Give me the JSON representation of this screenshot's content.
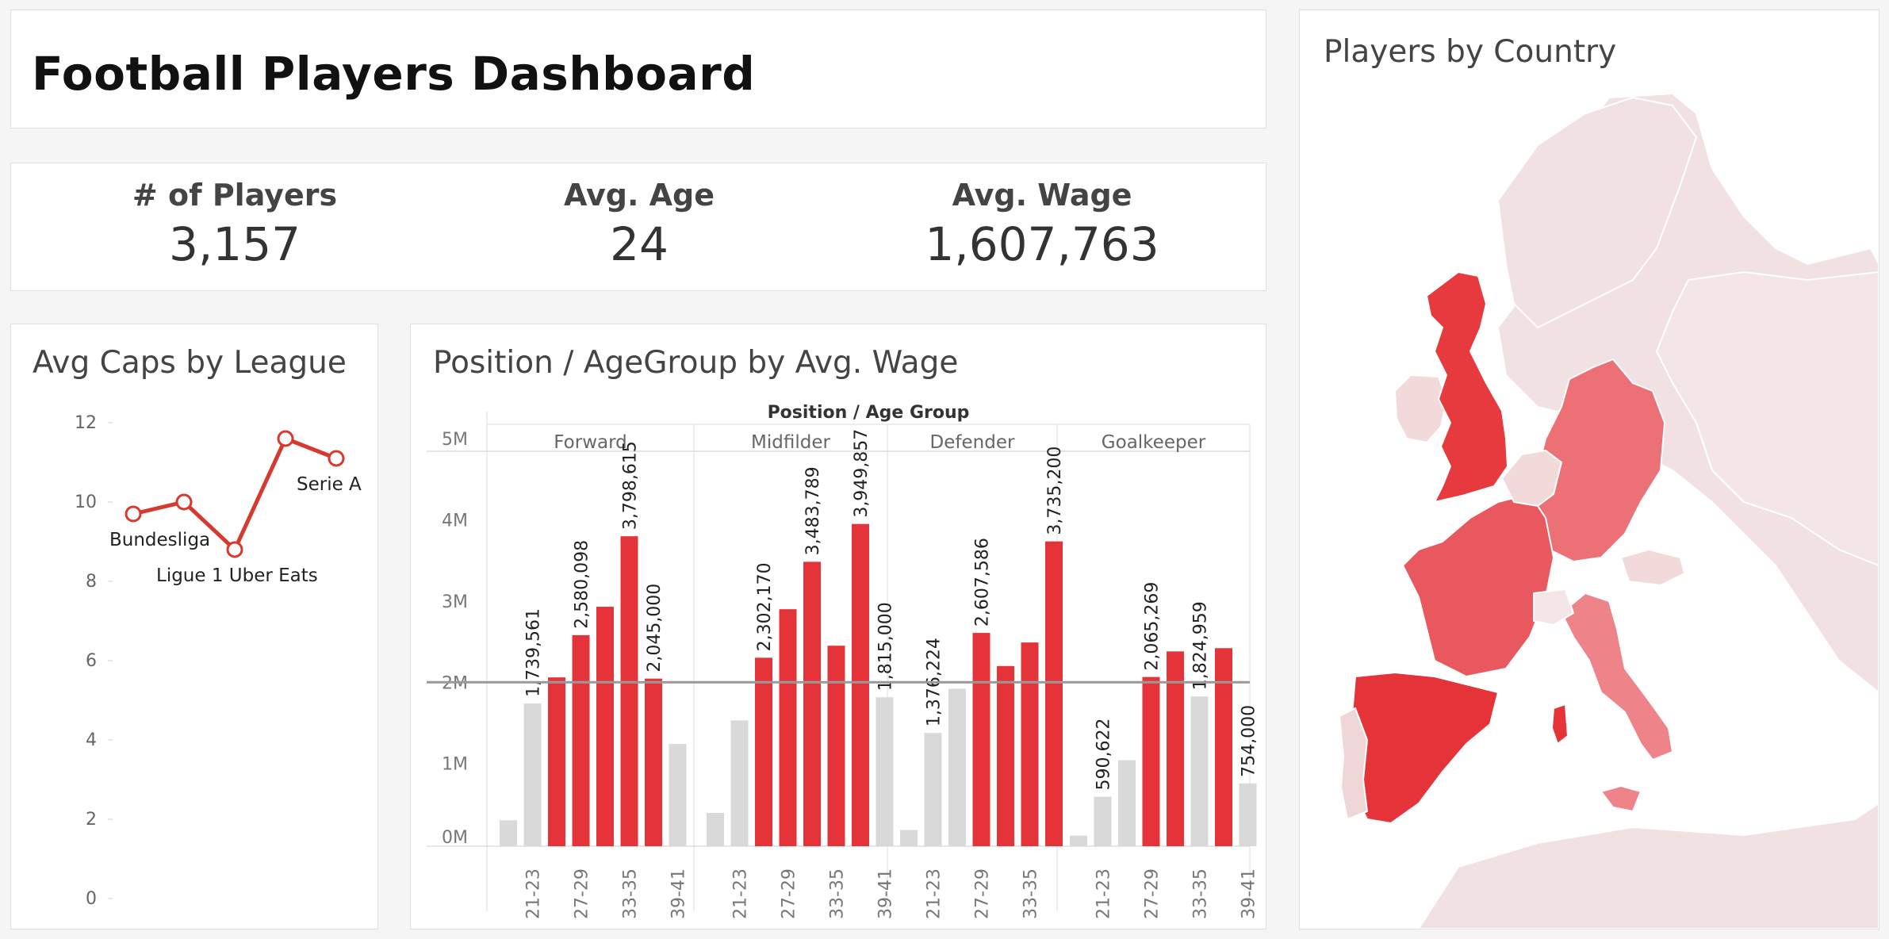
{
  "dashboard": {
    "title": "Football Players Dashboard"
  },
  "kpis": [
    {
      "label": "# of Players",
      "value": "3,157"
    },
    {
      "label": "Avg. Age",
      "value": "24"
    },
    {
      "label": "Avg. Wage",
      "value": "1,607,763"
    }
  ],
  "caps_chart": {
    "title": "Avg Caps by League",
    "chart_data": {
      "type": "line",
      "title": "Avg Caps by League",
      "y_ticks": [
        "0",
        "2",
        "4",
        "6",
        "8",
        "10",
        "12"
      ],
      "ylim": [
        0,
        12
      ],
      "points": [
        {
          "label": "",
          "value": 9.7
        },
        {
          "label": "Bundesliga",
          "value": 10.0
        },
        {
          "label": "Ligue 1 Uber Eats",
          "value": 8.8
        },
        {
          "label": "",
          "value": 11.6
        },
        {
          "label": "Serie A",
          "value": 11.1
        }
      ],
      "color": "#d63a2f"
    }
  },
  "wage_chart": {
    "title": "Position / AgeGroup by Avg. Wage",
    "chart_data": {
      "type": "bar",
      "column_header": "Position  /  Age Group",
      "y_ticks": [
        "0M",
        "1M",
        "2M",
        "3M",
        "4M",
        "5M"
      ],
      "ylim": [
        0,
        5500000
      ],
      "reference_line": 2000000,
      "x_labels": [
        "21-23",
        "27-29",
        "33-35",
        "39-41"
      ],
      "groups": [
        {
          "name": "Forward",
          "values": [
            300000,
            1739561,
            2060000,
            2580098,
            2930000,
            3798615,
            2045000,
            1240000
          ],
          "labels": [
            "",
            "1,739,561",
            "",
            "2,580,098",
            "",
            "3,798,615",
            "2,045,000",
            ""
          ],
          "highlight": [
            false,
            false,
            true,
            true,
            true,
            true,
            true,
            false
          ]
        },
        {
          "name": "Midfilder",
          "values": [
            390000,
            1530000,
            2302170,
            2900000,
            3483789,
            2450000,
            3949857,
            1815000
          ],
          "labels": [
            "",
            "",
            "2,302,170",
            "",
            "3,483,789",
            "",
            "3,949,857",
            "1,815,000"
          ],
          "highlight": [
            false,
            false,
            true,
            true,
            true,
            true,
            true,
            false
          ]
        },
        {
          "name": "Defender",
          "values": [
            180000,
            1376224,
            1920000,
            2607586,
            2200000,
            2490000,
            3735200
          ],
          "labels": [
            "",
            "1,376,224",
            "",
            "2,607,586",
            "",
            "",
            "3,735,200"
          ],
          "highlight": [
            false,
            false,
            false,
            true,
            true,
            true,
            true
          ]
        },
        {
          "name": "Goalkeeper",
          "values": [
            110000,
            590622,
            1040000,
            2065269,
            2380000,
            1824959,
            2420000,
            754000
          ],
          "labels": [
            "",
            "590,622",
            "",
            "2,065,269",
            "",
            "1,824,959",
            "",
            "754,000"
          ],
          "highlight": [
            false,
            false,
            false,
            true,
            true,
            false,
            true,
            false
          ]
        }
      ],
      "colors": {
        "highlight": "#e4343a",
        "normal": "#d9d9d9"
      }
    }
  },
  "map": {
    "title": "Players by Country"
  }
}
